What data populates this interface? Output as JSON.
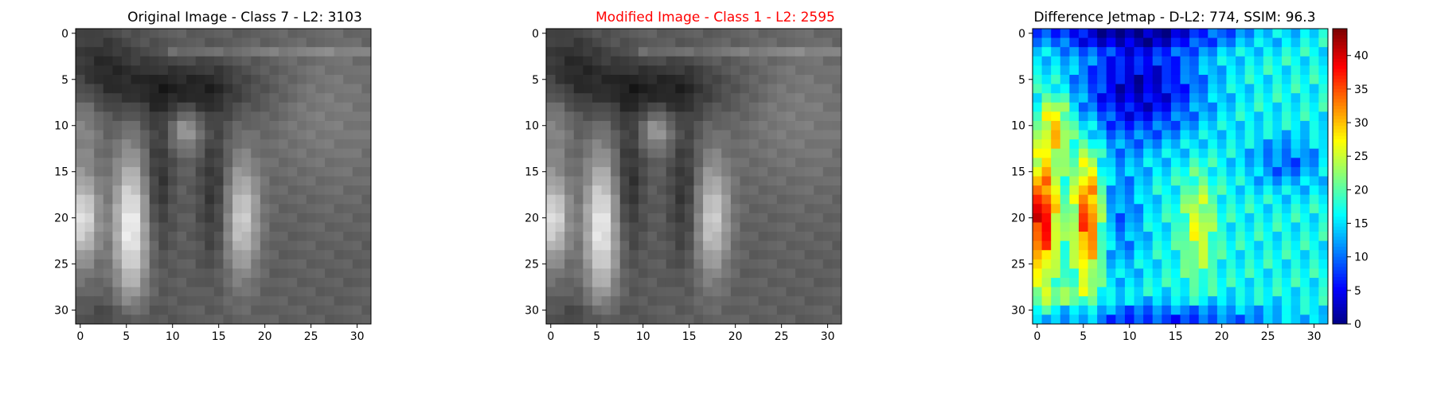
{
  "chart_data": [
    {
      "type": "heatmap",
      "title": "Original Image - Class 7 - L2: 3103",
      "title_color": "#000000",
      "colormap": "gray",
      "grid_size": [
        32,
        32
      ],
      "xlim": [
        0,
        31
      ],
      "ylim": [
        0,
        31
      ],
      "x_ticks": [
        "0",
        "5",
        "10",
        "15",
        "20",
        "25",
        "30"
      ],
      "y_ticks": [
        "0",
        "5",
        "10",
        "15",
        "20",
        "25",
        "30"
      ]
    },
    {
      "type": "heatmap",
      "title": "Modified Image - Class 1 - L2: 2595",
      "title_color": "#ff0000",
      "colormap": "gray",
      "grid_size": [
        32,
        32
      ],
      "xlim": [
        0,
        31
      ],
      "ylim": [
        0,
        31
      ],
      "x_ticks": [
        "0",
        "5",
        "10",
        "15",
        "20",
        "25",
        "30"
      ],
      "y_ticks": [
        "0",
        "5",
        "10",
        "15",
        "20",
        "25",
        "30"
      ]
    },
    {
      "type": "heatmap",
      "title": "Difference Jetmap - D-L2: 774, SSIM: 96.3",
      "title_color": "#000000",
      "colormap": "jet",
      "grid_size": [
        32,
        32
      ],
      "xlim": [
        0,
        31
      ],
      "ylim": [
        0,
        31
      ],
      "x_ticks": [
        "0",
        "5",
        "10",
        "15",
        "20",
        "25",
        "30"
      ],
      "y_ticks": [
        "0",
        "5",
        "10",
        "15",
        "20",
        "25",
        "30"
      ],
      "colorbar": {
        "range": [
          0,
          44
        ],
        "ticks": [
          "0",
          "5",
          "10",
          "15",
          "20",
          "25",
          "30",
          "35",
          "40"
        ]
      }
    }
  ]
}
